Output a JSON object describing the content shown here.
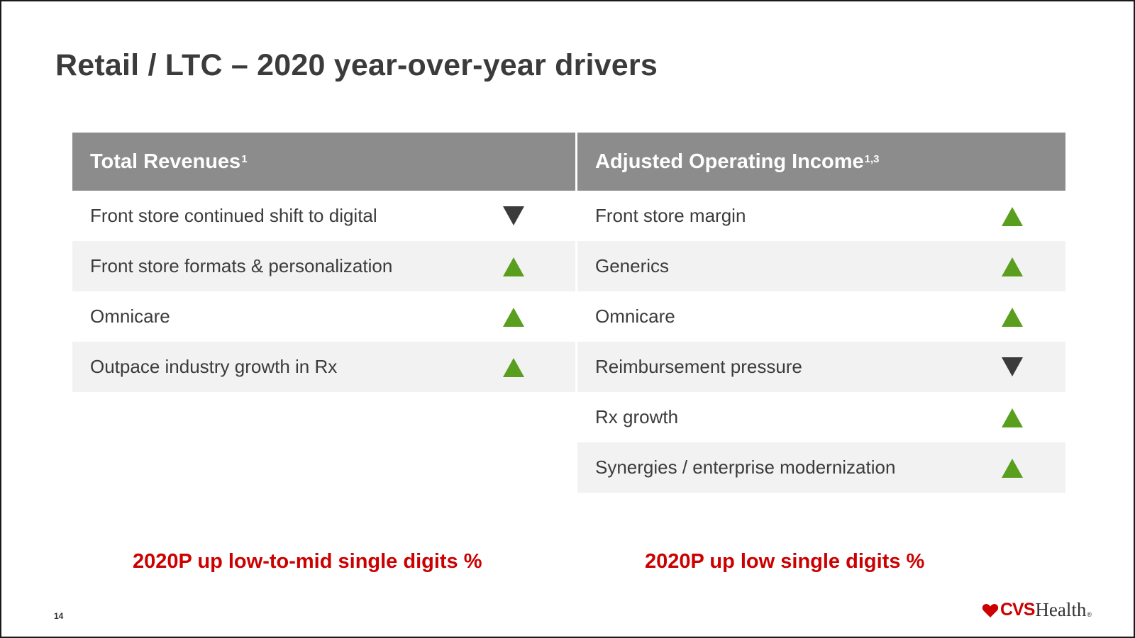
{
  "title": "Retail / LTC – 2020 year-over-year drivers",
  "colors": {
    "header_bg": "#8c8c8c",
    "row_shade": "#f2f2f2",
    "up_arrow": "#5a9e1e",
    "down_arrow": "#3b3b3b",
    "guidance_text": "#cc0000"
  },
  "left": {
    "header": "Total Revenues",
    "header_sup": "1",
    "rows": [
      {
        "label": "Front store continued shift to digital",
        "direction": "down"
      },
      {
        "label": "Front store formats & personalization",
        "direction": "up"
      },
      {
        "label": "Omnicare",
        "direction": "up"
      },
      {
        "label": "Outpace industry growth in Rx",
        "direction": "up"
      }
    ],
    "guidance": "2020P up low-to-mid single digits %"
  },
  "right": {
    "header": "Adjusted Operating Income",
    "header_sup": "1,3",
    "rows": [
      {
        "label": "Front store margin",
        "direction": "up"
      },
      {
        "label": "Generics",
        "direction": "up"
      },
      {
        "label": "Omnicare",
        "direction": "up"
      },
      {
        "label": "Reimbursement pressure",
        "direction": "down"
      },
      {
        "label": "Rx growth",
        "direction": "up"
      },
      {
        "label": "Synergies / enterprise modernization",
        "direction": "up"
      }
    ],
    "guidance": "2020P up low single digits %"
  },
  "page_number": "14",
  "logo": {
    "brand": "CVS",
    "suffix": "Health",
    "mark": "®"
  }
}
